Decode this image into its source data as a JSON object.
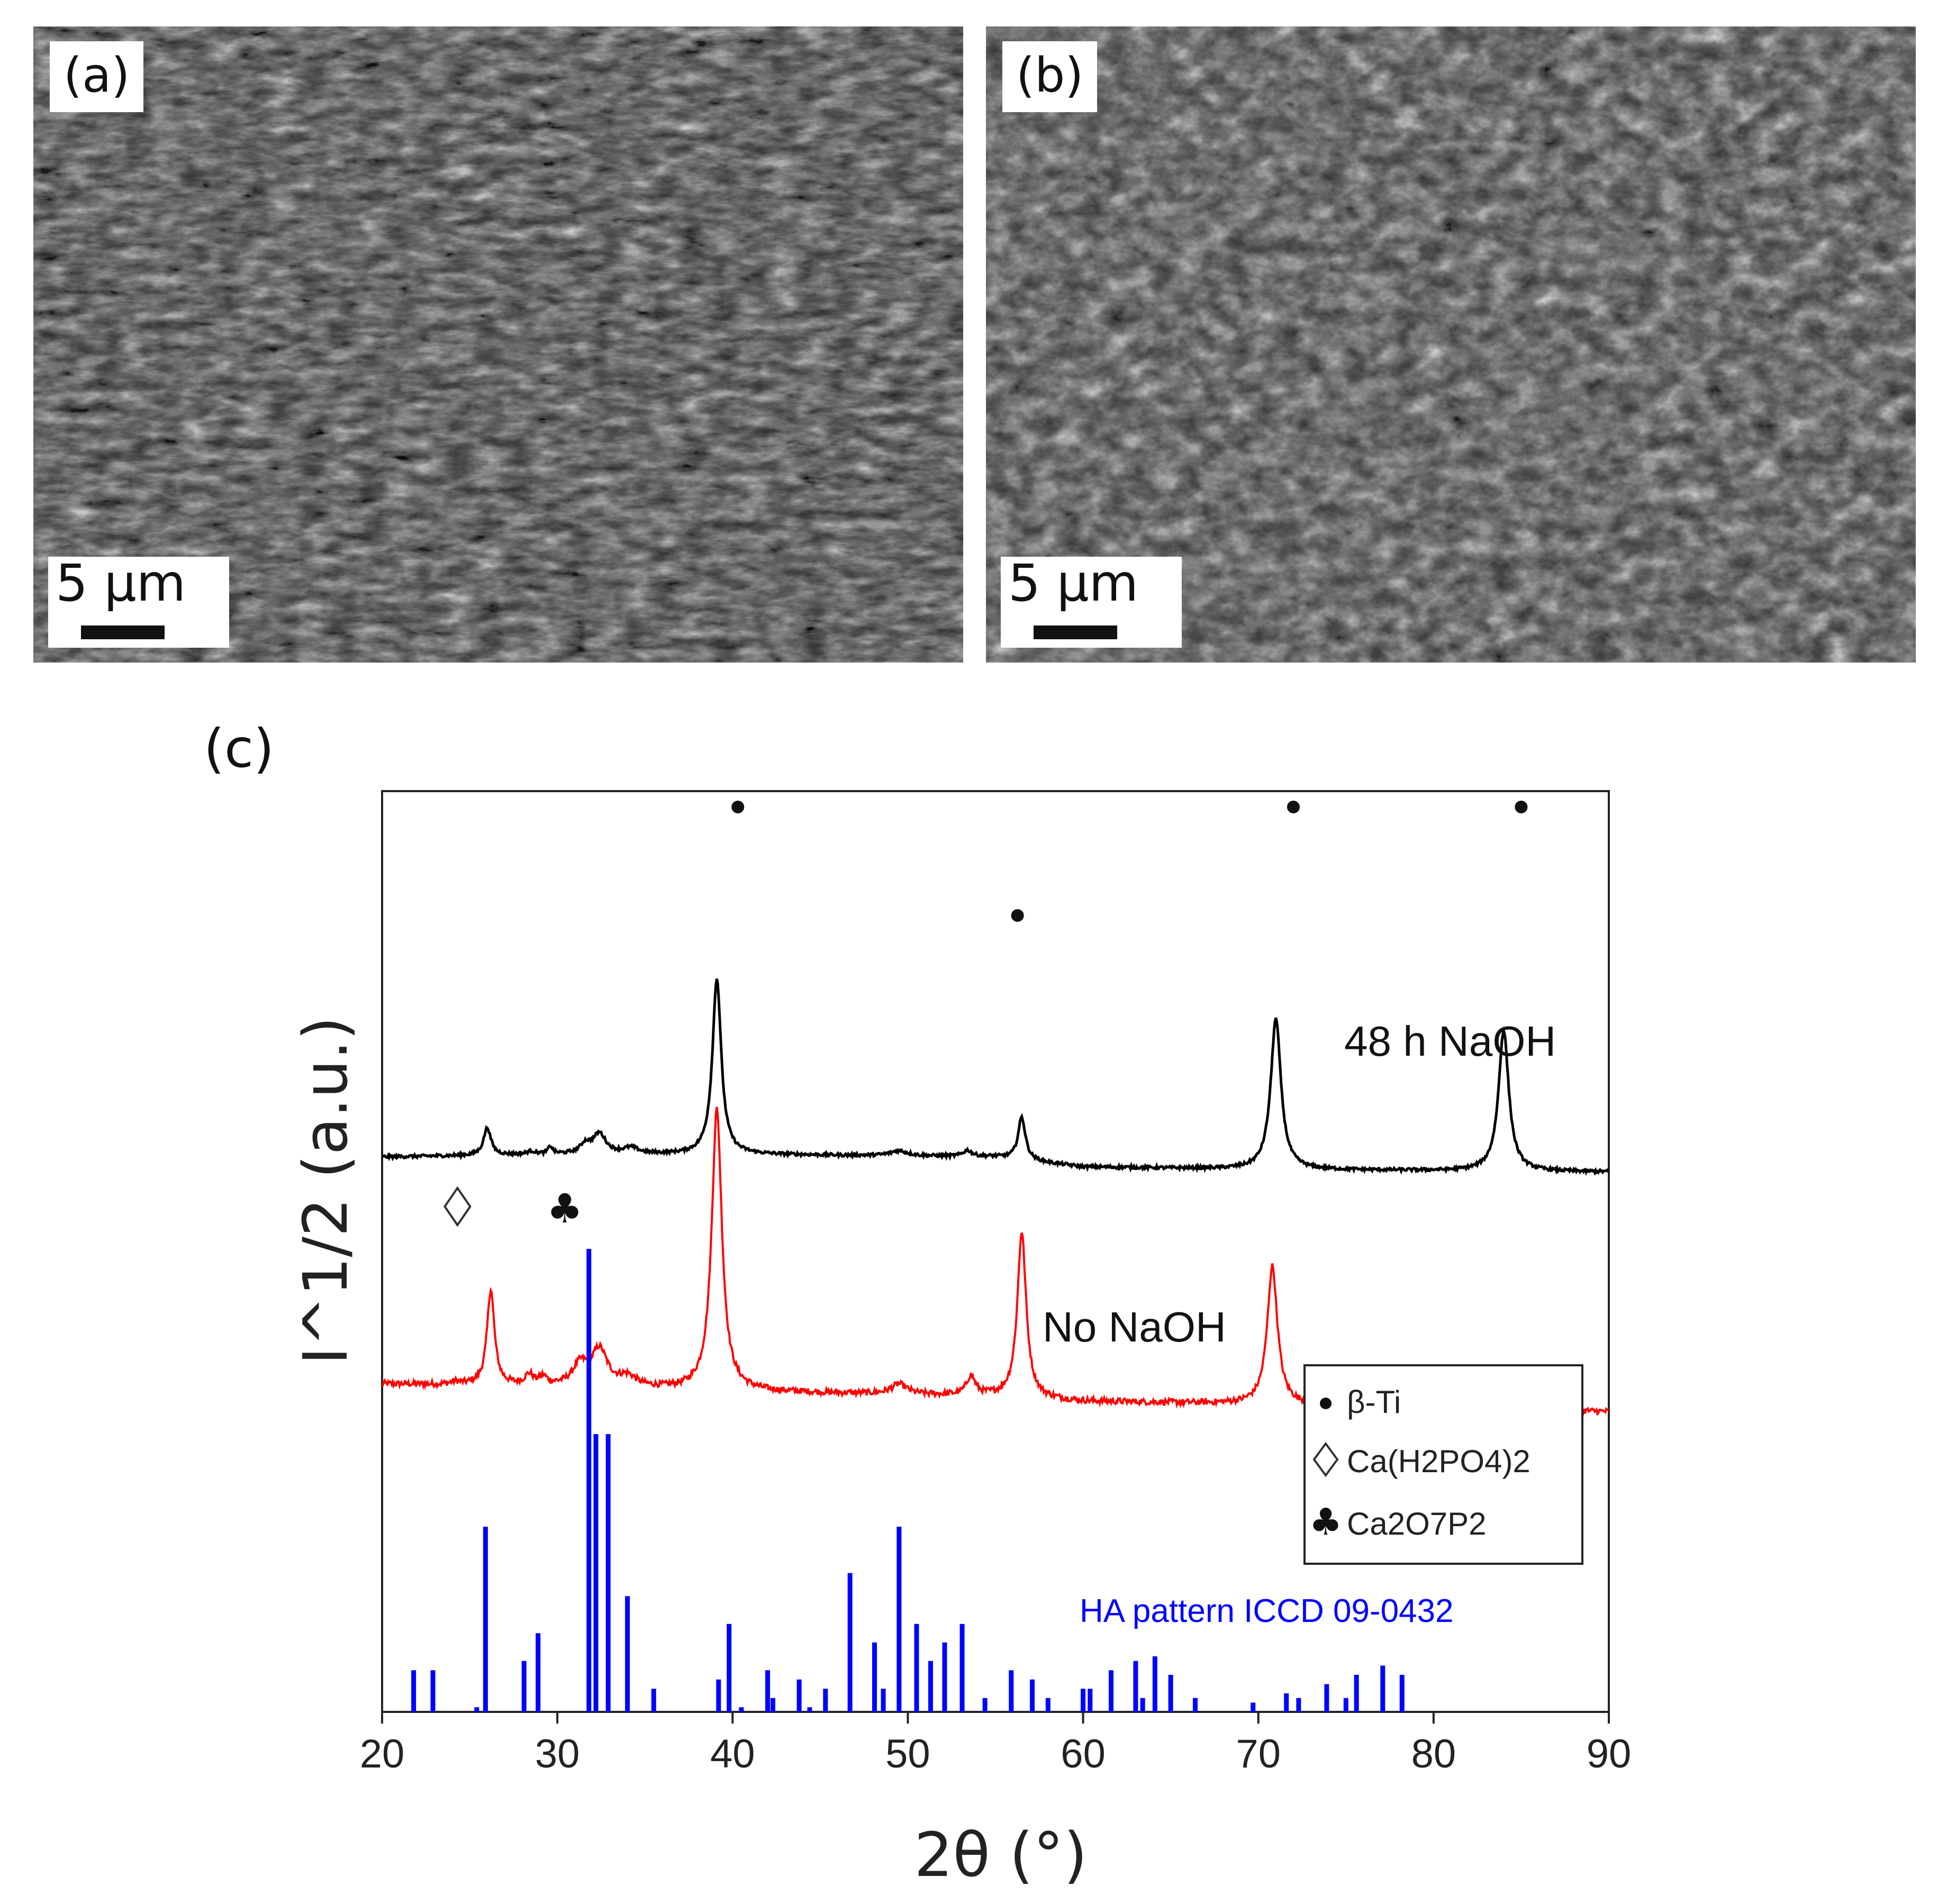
{
  "panels": {
    "a": {
      "label": "(a)",
      "scale_label": "5 μm"
    },
    "b": {
      "label": "(b)",
      "scale_label": "5 μm"
    },
    "c": {
      "label": "(c)"
    }
  },
  "chart_data": {
    "type": "line",
    "xlabel": "2θ (°)",
    "ylabel": "I^1/2 (a.u.)",
    "xlim": [
      20,
      90
    ],
    "xticks": [
      20,
      30,
      40,
      50,
      60,
      70,
      80,
      90
    ],
    "grid": false,
    "colors": {
      "48h": "#000000",
      "no_naoh": "#ff0000",
      "ha": "#0000ff"
    },
    "series": [
      {
        "name": "48 h NaOH",
        "color": "#000000",
        "baseline": 1.0,
        "peaks": [
          [
            26.0,
            0.55,
            0.25
          ],
          [
            28.5,
            0.06,
            0.3
          ],
          [
            29.6,
            0.15,
            0.15
          ],
          [
            31.6,
            0.18,
            0.35
          ],
          [
            32.4,
            0.4,
            0.45
          ],
          [
            34.2,
            0.12,
            0.5
          ],
          [
            39.1,
            3.5,
            0.3
          ],
          [
            49.5,
            0.1,
            0.6
          ],
          [
            53.4,
            0.12,
            0.3
          ],
          [
            56.5,
            0.85,
            0.25
          ],
          [
            71.0,
            3.0,
            0.35
          ],
          [
            84.0,
            2.8,
            0.35
          ]
        ],
        "drift": [
          [
            20,
            1.25
          ],
          [
            30,
            1.3
          ],
          [
            40,
            1.3
          ],
          [
            55,
            1.25
          ],
          [
            60,
            1.05
          ],
          [
            70,
            1.0
          ],
          [
            90,
            0.95
          ]
        ]
      },
      {
        "name": "No NaOH",
        "color": "#ff0000",
        "peaks": [
          [
            24.2,
            0.05,
            0.3
          ],
          [
            26.2,
            1.9,
            0.25
          ],
          [
            28.4,
            0.2,
            0.3
          ],
          [
            29.2,
            0.15,
            0.25
          ],
          [
            31.3,
            0.4,
            0.5
          ],
          [
            32.4,
            0.72,
            0.55
          ],
          [
            34.0,
            0.2,
            0.6
          ],
          [
            39.1,
            5.6,
            0.35
          ],
          [
            49.5,
            0.2,
            0.55
          ],
          [
            53.6,
            0.38,
            0.3
          ],
          [
            56.5,
            3.3,
            0.3
          ],
          [
            70.8,
            2.75,
            0.35
          ],
          [
            83.9,
            0.45,
            0.35
          ]
        ],
        "drift": [
          [
            20,
            1.65
          ],
          [
            30,
            1.6
          ],
          [
            40,
            1.5
          ],
          [
            55,
            1.4
          ],
          [
            60,
            1.3
          ],
          [
            70,
            1.25
          ],
          [
            80,
            1.2
          ],
          [
            90,
            1.1
          ]
        ]
      }
    ],
    "reference": {
      "name": "HA pattern ICCD 09-0432",
      "sticks": [
        [
          21.8,
          0.09
        ],
        [
          22.9,
          0.09
        ],
        [
          25.4,
          0.01
        ],
        [
          25.9,
          0.4
        ],
        [
          28.1,
          0.11
        ],
        [
          28.9,
          0.17
        ],
        [
          31.8,
          1.0
        ],
        [
          32.2,
          0.6
        ],
        [
          32.9,
          0.6
        ],
        [
          34.0,
          0.25
        ],
        [
          35.5,
          0.05
        ],
        [
          39.2,
          0.07
        ],
        [
          39.8,
          0.19
        ],
        [
          40.5,
          0.01
        ],
        [
          42.0,
          0.09
        ],
        [
          42.3,
          0.03
        ],
        [
          43.8,
          0.07
        ],
        [
          44.4,
          0.01
        ],
        [
          45.3,
          0.05
        ],
        [
          46.7,
          0.3
        ],
        [
          48.1,
          0.15
        ],
        [
          48.6,
          0.05
        ],
        [
          49.5,
          0.4
        ],
        [
          50.5,
          0.19
        ],
        [
          51.3,
          0.11
        ],
        [
          52.1,
          0.15
        ],
        [
          53.1,
          0.19
        ],
        [
          54.4,
          0.03
        ],
        [
          55.9,
          0.09
        ],
        [
          57.1,
          0.07
        ],
        [
          58.0,
          0.03
        ],
        [
          60.0,
          0.05
        ],
        [
          60.4,
          0.05
        ],
        [
          61.6,
          0.09
        ],
        [
          63.0,
          0.11
        ],
        [
          63.4,
          0.03
        ],
        [
          64.1,
          0.12
        ],
        [
          65.0,
          0.08
        ],
        [
          66.4,
          0.03
        ],
        [
          69.7,
          0.02
        ],
        [
          71.6,
          0.04
        ],
        [
          72.3,
          0.03
        ],
        [
          73.9,
          0.06
        ],
        [
          75.0,
          0.03
        ],
        [
          75.6,
          0.08
        ],
        [
          77.1,
          0.1
        ],
        [
          78.2,
          0.08
        ]
      ]
    },
    "annotations": {
      "beta_ti_peaks_48h": [
        40.3,
        56.5,
        72.0,
        85.0
      ],
      "diamond_at": 24.3,
      "club_at": 30.6
    },
    "series_labels": {
      "48h": "48 h NaOH",
      "no_naoh": "No NaOH"
    },
    "legend": {
      "position": "right-middle",
      "entries": [
        {
          "symbol": "●",
          "label": "β-Ti"
        },
        {
          "symbol": "◇",
          "label": "Ca(H2PO4)2"
        },
        {
          "symbol": "♣",
          "label": "Ca2O7P2"
        }
      ]
    }
  }
}
